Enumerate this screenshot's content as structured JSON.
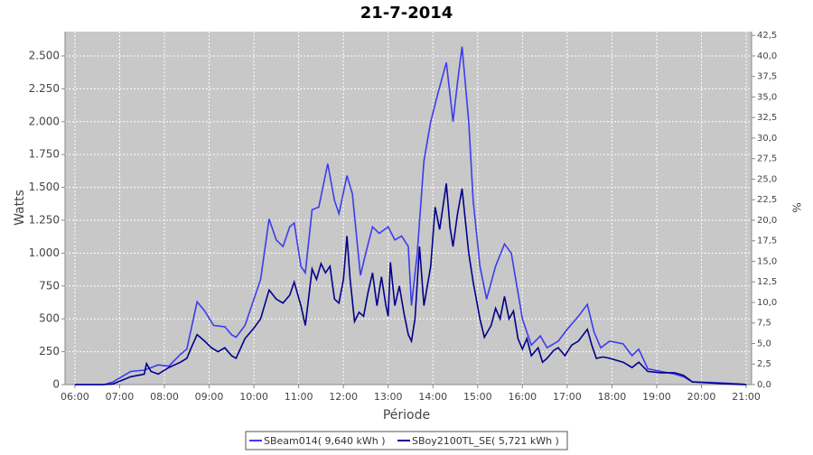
{
  "chart_data": {
    "type": "line",
    "title": "21-7-2014",
    "xlabel": "Période",
    "ylabel": "Watts",
    "y2label": "%",
    "xlim": [
      5.78,
      21.12
    ],
    "xticks": [
      {
        "value": 6,
        "label": "06:00"
      },
      {
        "value": 7,
        "label": "07:00"
      },
      {
        "value": 8,
        "label": "08:00"
      },
      {
        "value": 9,
        "label": "09:00"
      },
      {
        "value": 10,
        "label": "10:00"
      },
      {
        "value": 11,
        "label": "11:00"
      },
      {
        "value": 12,
        "label": "12:00"
      },
      {
        "value": 13,
        "label": "13:00"
      },
      {
        "value": 14,
        "label": "14:00"
      },
      {
        "value": 15,
        "label": "15:00"
      },
      {
        "value": 16,
        "label": "16:00"
      },
      {
        "value": 17,
        "label": "17:00"
      },
      {
        "value": 18,
        "label": "18:00"
      },
      {
        "value": 19,
        "label": "19:00"
      },
      {
        "value": 20,
        "label": "20:00"
      },
      {
        "value": 21,
        "label": "21:00"
      }
    ],
    "ylim": [
      0,
      2685
    ],
    "yticks": [
      0,
      250,
      500,
      750,
      {
        "value": 1000,
        "label": "1.000"
      },
      {
        "value": 1250,
        "label": "1.250"
      },
      {
        "value": 1500,
        "label": "1.500"
      },
      {
        "value": 1750,
        "label": "1.750"
      },
      {
        "value": 2000,
        "label": "2.000"
      },
      {
        "value": 2250,
        "label": "2.250"
      },
      {
        "value": 2500,
        "label": "2.500"
      }
    ],
    "y2lim": [
      0,
      42.96
    ],
    "y2ticks": [
      {
        "value": 0,
        "label": "0,0"
      },
      {
        "value": 2.5,
        "label": "2,5"
      },
      {
        "value": 5,
        "label": "5,0"
      },
      {
        "value": 7.5,
        "label": "7,5"
      },
      {
        "value": 10,
        "label": "10,0"
      },
      {
        "value": 12.5,
        "label": "12,5"
      },
      {
        "value": 15,
        "label": "15,0"
      },
      {
        "value": 17.5,
        "label": "17,5"
      },
      {
        "value": 20,
        "label": "20,0"
      },
      {
        "value": 22.5,
        "label": "22,5"
      },
      {
        "value": 25,
        "label": "25,0"
      },
      {
        "value": 27.5,
        "label": "27,5"
      },
      {
        "value": 30,
        "label": "30,0"
      },
      {
        "value": 32.5,
        "label": "32,5"
      },
      {
        "value": 35,
        "label": "35,0"
      },
      {
        "value": 37.5,
        "label": "37,5"
      },
      {
        "value": 40,
        "label": "40,0"
      },
      {
        "value": 42.5,
        "label": "42,5"
      }
    ],
    "grid": true,
    "series": [
      {
        "name": "SBeam014( 9,640 kWh )",
        "color": "#3c3cf0",
        "x": [
          6.0,
          6.65,
          6.85,
          7.25,
          7.55,
          7.86,
          8.1,
          8.36,
          8.5,
          8.73,
          8.9,
          9.1,
          9.35,
          9.5,
          9.6,
          9.8,
          10.0,
          10.15,
          10.34,
          10.5,
          10.65,
          10.8,
          10.9,
          11.05,
          11.15,
          11.3,
          11.45,
          11.65,
          11.8,
          11.9,
          12.08,
          12.2,
          12.38,
          12.5,
          12.65,
          12.8,
          13.0,
          13.15,
          13.3,
          13.45,
          13.52,
          13.65,
          13.8,
          13.95,
          14.1,
          14.3,
          14.4,
          14.45,
          14.55,
          14.65,
          14.8,
          14.9,
          15.05,
          15.2,
          15.4,
          15.6,
          15.75,
          15.9,
          16.0,
          16.2,
          16.4,
          16.55,
          16.8,
          17.0,
          17.25,
          17.45,
          17.6,
          17.75,
          17.95,
          18.25,
          18.45,
          18.6,
          18.8,
          19.1,
          19.4,
          19.6,
          19.8,
          20.3,
          20.9,
          21.0
        ],
        "values": [
          0,
          0,
          20,
          100,
          110,
          150,
          140,
          230,
          270,
          630,
          560,
          450,
          440,
          380,
          360,
          450,
          650,
          800,
          1260,
          1100,
          1050,
          1200,
          1230,
          900,
          850,
          1330,
          1350,
          1680,
          1400,
          1300,
          1590,
          1450,
          830,
          1000,
          1200,
          1150,
          1200,
          1100,
          1130,
          1050,
          600,
          1000,
          1700,
          2000,
          2200,
          2450,
          2150,
          2000,
          2300,
          2570,
          2000,
          1400,
          900,
          650,
          900,
          1070,
          1000,
          700,
          500,
          300,
          370,
          280,
          330,
          420,
          520,
          610,
          400,
          280,
          330,
          310,
          220,
          270,
          120,
          100,
          80,
          60,
          20,
          15,
          5,
          0
        ]
      },
      {
        "name": "SBoy2100TL_SE( 5,721 kWh )",
        "color": "#00008b",
        "x": [
          6.0,
          6.65,
          6.85,
          7.25,
          7.55,
          7.6,
          7.7,
          7.86,
          8.1,
          8.36,
          8.5,
          8.6,
          8.73,
          8.9,
          9.05,
          9.2,
          9.35,
          9.5,
          9.6,
          9.8,
          10.0,
          10.15,
          10.34,
          10.5,
          10.65,
          10.8,
          10.9,
          11.05,
          11.15,
          11.3,
          11.4,
          11.5,
          11.6,
          11.7,
          11.8,
          11.9,
          12.0,
          12.08,
          12.15,
          12.25,
          12.35,
          12.45,
          12.55,
          12.65,
          12.75,
          12.85,
          12.95,
          13.0,
          13.05,
          13.15,
          13.25,
          13.35,
          13.45,
          13.52,
          13.6,
          13.7,
          13.8,
          13.95,
          14.05,
          14.15,
          14.3,
          14.38,
          14.45,
          14.55,
          14.65,
          14.8,
          14.9,
          15.05,
          15.15,
          15.3,
          15.4,
          15.5,
          15.6,
          15.7,
          15.8,
          15.9,
          16.0,
          16.1,
          16.2,
          16.35,
          16.45,
          16.55,
          16.7,
          16.8,
          16.95,
          17.1,
          17.25,
          17.45,
          17.55,
          17.65,
          17.8,
          17.95,
          18.25,
          18.45,
          18.6,
          18.8,
          19.1,
          19.4,
          19.6,
          19.8,
          20.3,
          20.9,
          21.0
        ],
        "values": [
          0,
          0,
          5,
          60,
          80,
          160,
          100,
          80,
          130,
          170,
          200,
          280,
          380,
          330,
          280,
          250,
          280,
          220,
          200,
          350,
          430,
          500,
          720,
          650,
          620,
          680,
          780,
          600,
          450,
          880,
          800,
          920,
          850,
          900,
          650,
          620,
          800,
          1130,
          800,
          480,
          550,
          520,
          700,
          850,
          600,
          820,
          600,
          520,
          930,
          600,
          750,
          550,
          380,
          330,
          500,
          1050,
          600,
          900,
          1350,
          1180,
          1530,
          1200,
          1050,
          1300,
          1490,
          1000,
          780,
          500,
          360,
          450,
          580,
          500,
          670,
          500,
          560,
          350,
          270,
          350,
          220,
          280,
          170,
          200,
          260,
          280,
          220,
          300,
          330,
          420,
          300,
          200,
          210,
          200,
          170,
          130,
          170,
          100,
          90,
          90,
          70,
          20,
          10,
          0,
          0
        ]
      }
    ]
  }
}
